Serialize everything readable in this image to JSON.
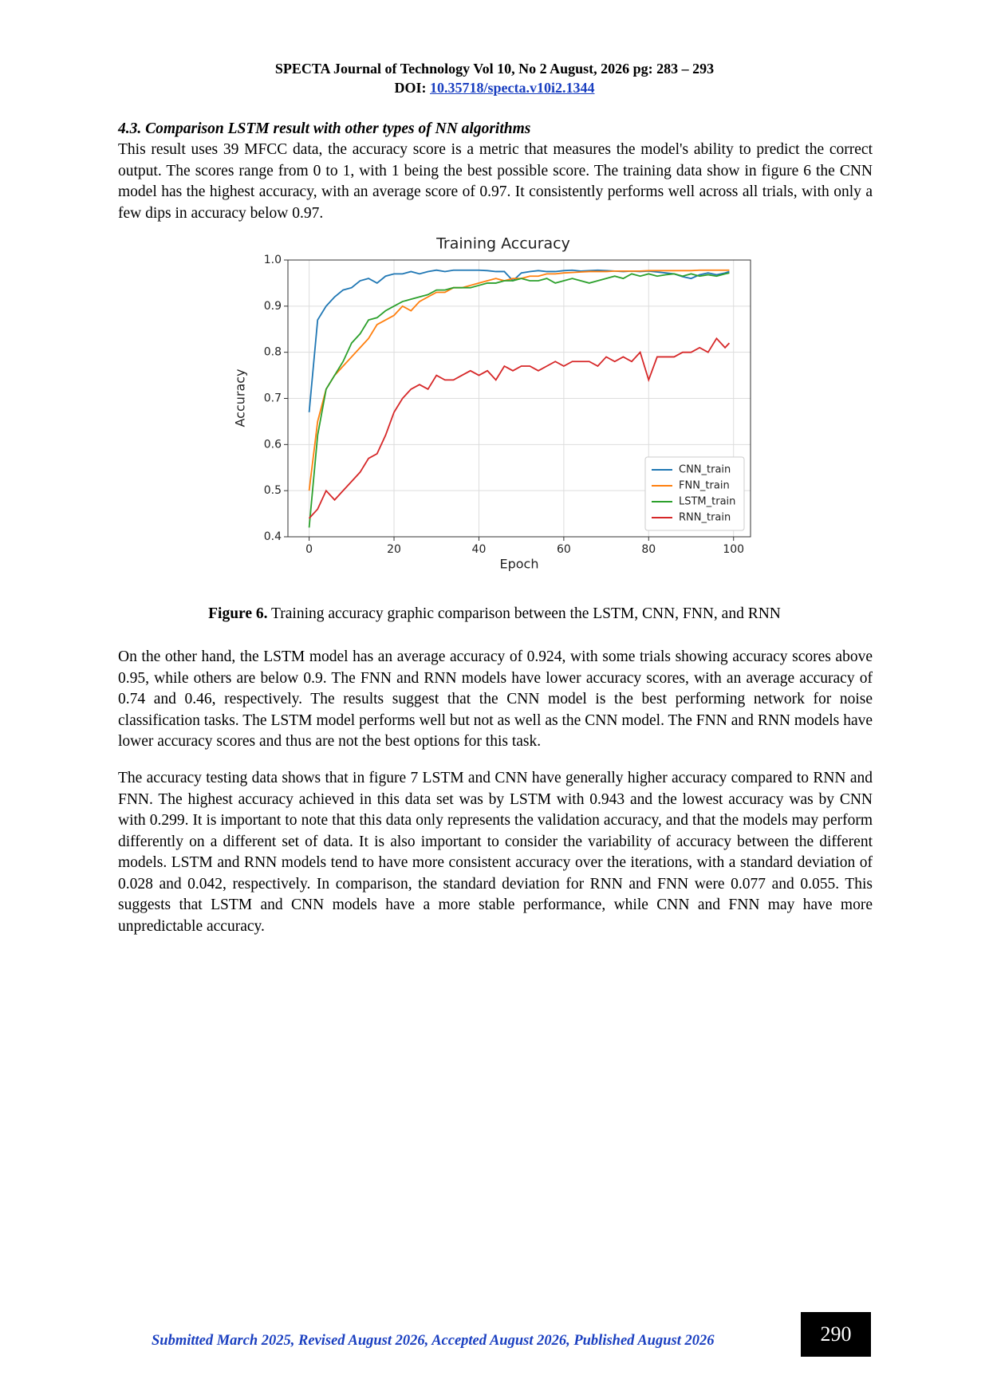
{
  "header": {
    "journal": "SPECTA Journal of Technology Vol 10, No 2 August, 2026 pg: 283 – 293",
    "doi_label": "DOI:",
    "doi": "10.35718/specta.v10i2.1344"
  },
  "section": {
    "number": "4.3.",
    "title": "Comparison LSTM result with other types of NN algorithms"
  },
  "paragraphs": [
    "This result uses 39 MFCC data, the accuracy score is a metric that measures the model's ability to predict the correct output. The scores range from 0 to 1, with 1 being the best possible score. The training data show in figure 6 the CNN model has the highest accuracy, with an average score of 0.97. It consistently performs well across all trials, with only a few dips in accuracy below 0.97.",
    "On the other hand, the LSTM model has an average accuracy of 0.924, with some trials showing accuracy scores above 0.95, while others are below 0.9. The FNN and RNN models have lower accuracy scores, with an average accuracy of 0.74 and 0.46, respectively. The results suggest that the CNN model is the best performing network for noise classification tasks. The LSTM model performs well but not as well as the CNN model. The FNN and RNN models have lower accuracy scores and thus are not the best options for this task.",
    "The accuracy testing data shows that in figure 7 LSTM and CNN have generally higher accuracy compared to RNN and FNN. The highest accuracy achieved in this data set was by LSTM with 0.943 and the lowest accuracy was by CNN with 0.299. It is important to note that this data only represents the validation accuracy, and that the models may perform differently on a different set of data. It is also important to consider the variability of accuracy between the different models. LSTM and RNN models tend to have more consistent accuracy over the iterations, with a standard deviation of 0.028 and 0.042, respectively. In comparison, the standard deviation for RNN and FNN were 0.077 and 0.055. This suggests that LSTM and CNN models have a more stable performance, while CNN and FNN may have more unpredictable accuracy."
  ],
  "figure": {
    "label": "Figure 6.",
    "caption": "Training accuracy graphic comparison between the LSTM, CNN, FNN, and RNN"
  },
  "chart_data": {
    "type": "line",
    "title": "Training Accuracy",
    "x_label": "Epoch",
    "y_label": "Accuracy",
    "x": [
      0,
      2,
      4,
      6,
      8,
      10,
      12,
      14,
      16,
      18,
      20,
      22,
      24,
      26,
      28,
      30,
      32,
      34,
      36,
      38,
      40,
      42,
      44,
      46,
      48,
      50,
      52,
      54,
      56,
      58,
      60,
      62,
      64,
      66,
      68,
      70,
      72,
      74,
      76,
      78,
      80,
      82,
      84,
      86,
      88,
      90,
      92,
      94,
      96,
      98,
      99
    ],
    "series": [
      {
        "name": "CNN_train",
        "color": "#1f77b4",
        "values": [
          0.67,
          0.87,
          0.9,
          0.92,
          0.935,
          0.94,
          0.955,
          0.96,
          0.95,
          0.965,
          0.97,
          0.97,
          0.975,
          0.97,
          0.975,
          0.978,
          0.975,
          0.978,
          0.978,
          0.978,
          0.978,
          0.977,
          0.975,
          0.975,
          0.955,
          0.972,
          0.975,
          0.977,
          0.975,
          0.975,
          0.977,
          0.978,
          0.976,
          0.977,
          0.978,
          0.977,
          0.976,
          0.975,
          0.976,
          0.975,
          0.976,
          0.974,
          0.972,
          0.97,
          0.964,
          0.96,
          0.968,
          0.972,
          0.968,
          0.972,
          0.975
        ]
      },
      {
        "name": "FNN_train",
        "color": "#ff7f0e",
        "values": [
          0.5,
          0.65,
          0.72,
          0.75,
          0.77,
          0.79,
          0.81,
          0.83,
          0.86,
          0.87,
          0.88,
          0.9,
          0.89,
          0.91,
          0.92,
          0.93,
          0.93,
          0.94,
          0.94,
          0.945,
          0.95,
          0.955,
          0.96,
          0.955,
          0.96,
          0.96,
          0.965,
          0.965,
          0.97,
          0.97,
          0.972,
          0.973,
          0.974,
          0.975,
          0.975,
          0.975,
          0.976,
          0.976,
          0.976,
          0.976,
          0.977,
          0.977,
          0.977,
          0.977,
          0.977,
          0.977,
          0.978,
          0.978,
          0.978,
          0.978,
          0.978
        ]
      },
      {
        "name": "LSTM_train",
        "color": "#2ca02c",
        "values": [
          0.42,
          0.62,
          0.72,
          0.75,
          0.78,
          0.82,
          0.84,
          0.87,
          0.875,
          0.89,
          0.9,
          0.91,
          0.915,
          0.92,
          0.925,
          0.935,
          0.935,
          0.94,
          0.94,
          0.94,
          0.945,
          0.95,
          0.95,
          0.955,
          0.955,
          0.96,
          0.955,
          0.955,
          0.96,
          0.95,
          0.955,
          0.96,
          0.955,
          0.95,
          0.955,
          0.96,
          0.965,
          0.96,
          0.97,
          0.965,
          0.97,
          0.965,
          0.968,
          0.97,
          0.965,
          0.97,
          0.965,
          0.968,
          0.965,
          0.97,
          0.972
        ]
      },
      {
        "name": "RNN_train",
        "color": "#d62728",
        "values": [
          0.44,
          0.46,
          0.5,
          0.48,
          0.5,
          0.52,
          0.54,
          0.57,
          0.58,
          0.62,
          0.67,
          0.7,
          0.72,
          0.73,
          0.72,
          0.75,
          0.74,
          0.74,
          0.75,
          0.76,
          0.75,
          0.76,
          0.74,
          0.77,
          0.76,
          0.77,
          0.77,
          0.76,
          0.77,
          0.78,
          0.77,
          0.78,
          0.78,
          0.78,
          0.77,
          0.79,
          0.78,
          0.79,
          0.78,
          0.8,
          0.74,
          0.79,
          0.79,
          0.79,
          0.8,
          0.8,
          0.81,
          0.8,
          0.83,
          0.81,
          0.82
        ]
      }
    ],
    "xlim": [
      -5,
      104
    ],
    "xticks": [
      0,
      20,
      40,
      60,
      80,
      100
    ],
    "ylim": [
      0.4,
      1.0
    ],
    "yticks": [
      0.4,
      0.5,
      0.6,
      0.7,
      0.8,
      0.9,
      {
        "value": 1.0,
        "label": "1.0"
      }
    ],
    "grid": true,
    "legend": "lower right"
  },
  "footer": {
    "submission": "Submitted March 2025, Revised August 2026, Accepted August 2026, Published August 2026",
    "page": "290"
  }
}
